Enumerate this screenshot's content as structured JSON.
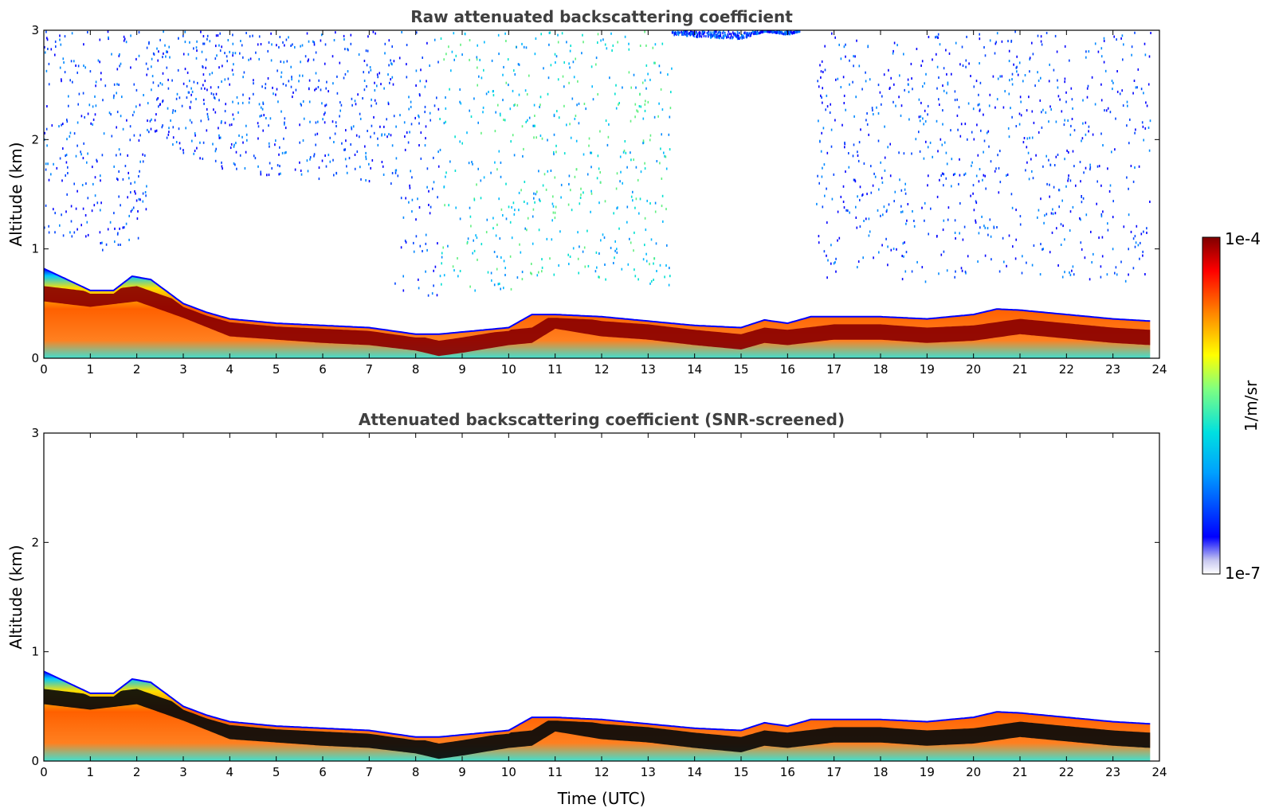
{
  "figure": {
    "panels": [
      {
        "id": "raw",
        "title": "Raw attenuated backscattering coefficient",
        "ylabel": "Altitude (km)",
        "xlabel": ""
      },
      {
        "id": "screened",
        "title": "Attenuated backscattering coefficient (SNR-screened)",
        "ylabel": "Altitude (km)",
        "xlabel": "Time (UTC)"
      }
    ],
    "colorbar": {
      "label": "1/m/sr",
      "max_label": "1e-4",
      "min_label": "1e-7",
      "scale": "log",
      "colormap": "jet"
    }
  },
  "chart_data": [
    {
      "type": "heatmap",
      "title": "Raw attenuated backscattering coefficient",
      "xlabel": "",
      "ylabel": "Altitude (km)",
      "xlim": [
        0,
        24
      ],
      "ylim": [
        0,
        3
      ],
      "xticks": [
        "0",
        "1",
        "2",
        "3",
        "4",
        "5",
        "6",
        "7",
        "8",
        "9",
        "10",
        "11",
        "12",
        "13",
        "14",
        "15",
        "16",
        "17",
        "18",
        "19",
        "20",
        "21",
        "22",
        "23",
        "24"
      ],
      "yticks": [
        "0",
        "1",
        "2",
        "3"
      ],
      "colorscale": {
        "min": 1e-07,
        "max": 0.0001,
        "scale": "log"
      },
      "series": [
        {
          "role": "aerosol-layer-top-km",
          "x": [
            0,
            0.5,
            1,
            1.5,
            1.9,
            2.3,
            3,
            3.5,
            4,
            5,
            6,
            7,
            7.5,
            8,
            8.5,
            9,
            9.5,
            10,
            10.5,
            11,
            12,
            13,
            14,
            15,
            15.5,
            16,
            16.5,
            17,
            18,
            19,
            20,
            20.5,
            21,
            22,
            23,
            23.8
          ],
          "values": [
            0.82,
            0.72,
            0.62,
            0.62,
            0.75,
            0.72,
            0.5,
            0.42,
            0.36,
            0.32,
            0.3,
            0.28,
            0.25,
            0.22,
            0.22,
            0.24,
            0.26,
            0.28,
            0.4,
            0.4,
            0.38,
            0.34,
            0.3,
            0.28,
            0.35,
            0.32,
            0.38,
            0.38,
            0.38,
            0.36,
            0.4,
            0.45,
            0.44,
            0.4,
            0.36,
            0.34
          ]
        },
        {
          "role": "strong-layer-center-km",
          "x": [
            0,
            1,
            2,
            3,
            4,
            5,
            6,
            7,
            8,
            8.5,
            9,
            10,
            10.5,
            11,
            12,
            13,
            14,
            15,
            15.5,
            16,
            17,
            18,
            19,
            20,
            21,
            22,
            23,
            23.8
          ],
          "values": [
            0.6,
            0.55,
            0.6,
            0.45,
            0.28,
            0.25,
            0.22,
            0.2,
            0.15,
            0.1,
            0.13,
            0.2,
            0.22,
            0.35,
            0.28,
            0.25,
            0.2,
            0.16,
            0.22,
            0.2,
            0.25,
            0.25,
            0.22,
            0.24,
            0.3,
            0.26,
            0.22,
            0.2
          ]
        }
      ]
    },
    {
      "type": "heatmap",
      "title": "Attenuated backscattering coefficient (SNR-screened)",
      "xlabel": "Time (UTC)",
      "ylabel": "Altitude (km)",
      "xlim": [
        0,
        24
      ],
      "ylim": [
        0,
        3
      ],
      "xticks": [
        "0",
        "1",
        "2",
        "3",
        "4",
        "5",
        "6",
        "7",
        "8",
        "9",
        "10",
        "11",
        "12",
        "13",
        "14",
        "15",
        "16",
        "17",
        "18",
        "19",
        "20",
        "21",
        "22",
        "23",
        "24"
      ],
      "yticks": [
        "0",
        "1",
        "2",
        "3"
      ],
      "colorscale": {
        "min": 1e-07,
        "max": 0.0001,
        "scale": "log"
      },
      "series": [
        {
          "role": "aerosol-layer-top-km",
          "x": [
            0,
            0.5,
            1,
            1.5,
            1.9,
            2.3,
            3,
            3.5,
            4,
            5,
            6,
            7,
            7.5,
            8,
            8.5,
            9,
            9.5,
            10,
            10.5,
            11,
            12,
            13,
            14,
            15,
            15.5,
            16,
            16.5,
            17,
            18,
            19,
            20,
            20.5,
            21,
            22,
            23,
            23.8
          ],
          "values": [
            0.82,
            0.72,
            0.62,
            0.62,
            0.75,
            0.72,
            0.5,
            0.42,
            0.36,
            0.32,
            0.3,
            0.28,
            0.25,
            0.22,
            0.22,
            0.24,
            0.26,
            0.28,
            0.4,
            0.4,
            0.38,
            0.34,
            0.3,
            0.28,
            0.35,
            0.32,
            0.38,
            0.38,
            0.38,
            0.36,
            0.4,
            0.45,
            0.44,
            0.4,
            0.36,
            0.34
          ]
        },
        {
          "role": "strong-layer-center-km",
          "x": [
            0,
            1,
            2,
            3,
            4,
            5,
            6,
            7,
            8,
            8.5,
            9,
            10,
            10.5,
            11,
            12,
            13,
            14,
            15,
            15.5,
            16,
            17,
            18,
            19,
            20,
            21,
            22,
            23,
            23.8
          ],
          "values": [
            0.6,
            0.55,
            0.6,
            0.45,
            0.28,
            0.25,
            0.22,
            0.2,
            0.15,
            0.1,
            0.13,
            0.2,
            0.22,
            0.35,
            0.28,
            0.25,
            0.2,
            0.16,
            0.22,
            0.2,
            0.25,
            0.25,
            0.22,
            0.24,
            0.3,
            0.26,
            0.22,
            0.2
          ]
        }
      ]
    }
  ]
}
